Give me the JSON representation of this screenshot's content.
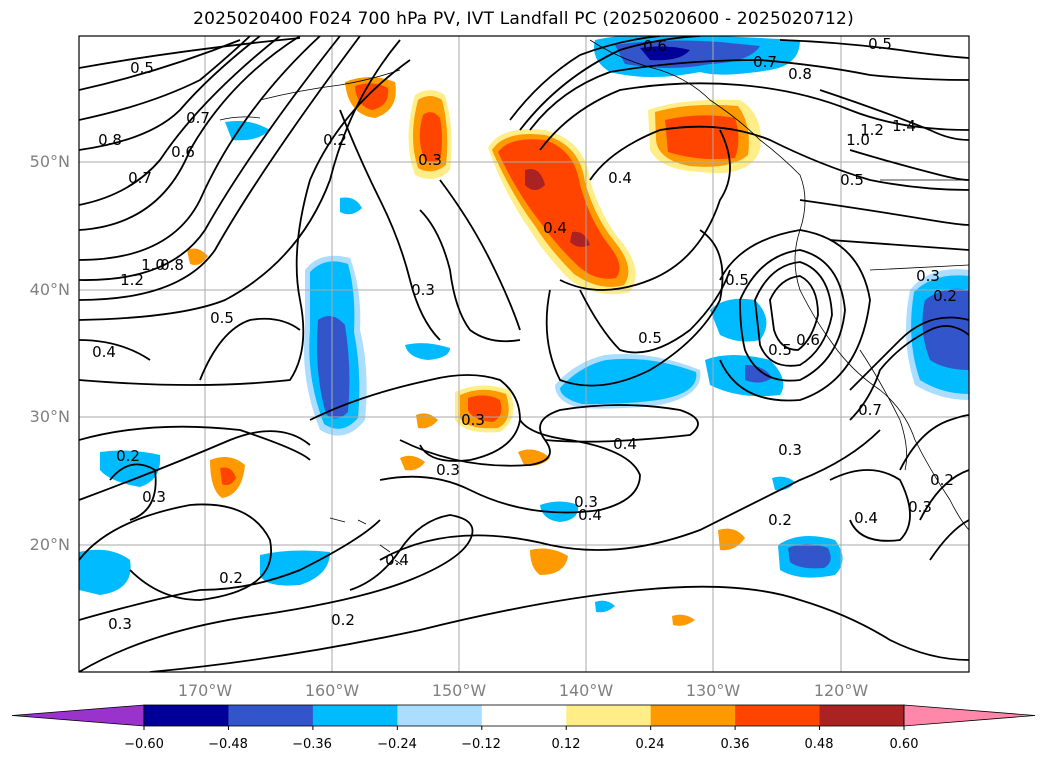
{
  "title": "2025020400 F024 700 hPa PV, IVT Landfall PC (2025020600 - 2025020712)",
  "map": {
    "lat_labels": [
      "50°N",
      "40°N",
      "30°N",
      "20°N"
    ],
    "lon_labels": [
      "170°W",
      "160°W",
      "150°W",
      "140°W",
      "130°W",
      "120°W"
    ],
    "contour_labels": [
      "0.5",
      "0.6",
      "0.7",
      "0.8",
      "0.5",
      "0.7",
      "0.6",
      "0.8",
      "1.2",
      "1.4",
      "1.0",
      "0.5",
      "0.2",
      "0.3",
      "0.4",
      "0.4",
      "0.7",
      "1.2",
      "1.0",
      "0.8",
      "0.5",
      "0.4",
      "0.3",
      "0.5",
      "0.5",
      "0.5",
      "0.6",
      "0.7",
      "0.2",
      "0.3",
      "0.3",
      "0.4",
      "0.3",
      "0.4",
      "0.3",
      "0.3",
      "0.2",
      "0.2",
      "0.4",
      "0.3",
      "0.2",
      "0.2",
      "0.3",
      "0.4",
      "0.3",
      "0.2"
    ],
    "colors": {
      "neg_060": "#9933cc",
      "neg_048": "#000099",
      "neg_036": "#3355cc",
      "neg_024": "#00bbff",
      "neg_012": "#aaddff",
      "pos_012": "#ffee88",
      "pos_024": "#ff9900",
      "pos_036": "#ff4400",
      "pos_048": "#aa2222",
      "pos_060": "#ff88aa"
    }
  },
  "colorbar": {
    "ticks": [
      "−0.60",
      "−0.48",
      "−0.36",
      "−0.24",
      "−0.12",
      "0.12",
      "0.24",
      "0.36",
      "0.48",
      "0.60"
    ],
    "colors": [
      "#9933cc",
      "#000099",
      "#3355cc",
      "#00bbff",
      "#aaddff",
      "#ffffff",
      "#ffee88",
      "#ff9900",
      "#ff4400",
      "#aa2222",
      "#ff88aa"
    ]
  }
}
